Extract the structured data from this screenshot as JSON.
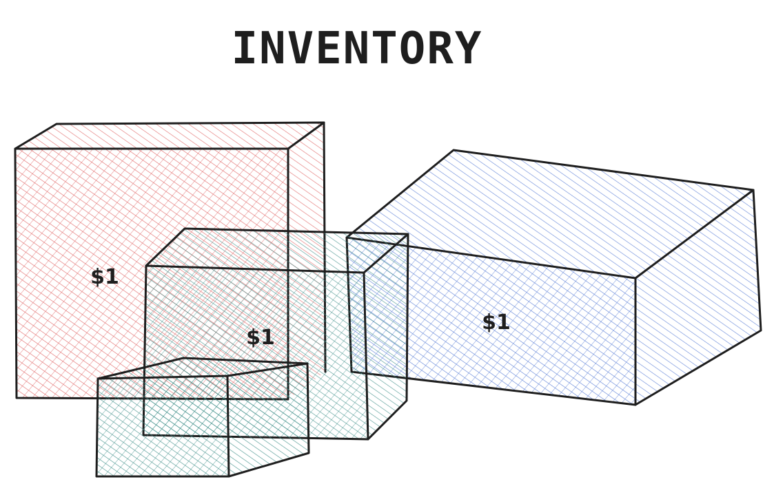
{
  "title": "INVENTORY",
  "boxes": [
    {
      "id": "red-box",
      "color": "#e03131",
      "label": "$1"
    },
    {
      "id": "blue-box",
      "color": "#4a6fd1",
      "label": "$1"
    },
    {
      "id": "teal-box-large",
      "color": "#2f7f7a",
      "label": "$1"
    },
    {
      "id": "teal-box-small",
      "color": "#2f7f7a",
      "label": ""
    }
  ]
}
